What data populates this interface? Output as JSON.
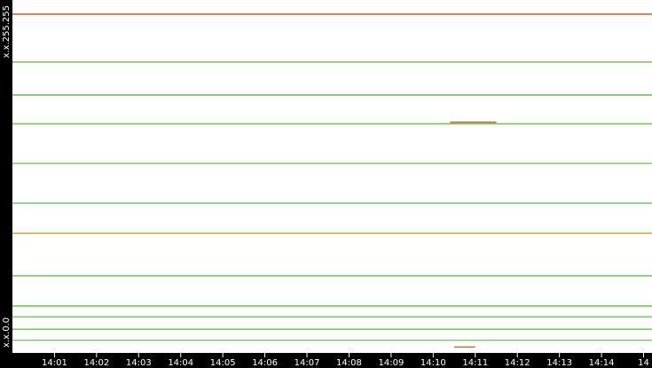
{
  "chart_data": {
    "type": "raster",
    "xlim": [
      0,
      15.2
    ],
    "xticks": [
      {
        "value": 1,
        "label": "14:01"
      },
      {
        "value": 2,
        "label": "14:02"
      },
      {
        "value": 3,
        "label": "14:03"
      },
      {
        "value": 4,
        "label": "14:04"
      },
      {
        "value": 5,
        "label": "14:05"
      },
      {
        "value": 6,
        "label": "14:06"
      },
      {
        "value": 7,
        "label": "14:07"
      },
      {
        "value": 8,
        "label": "14:08"
      },
      {
        "value": 9,
        "label": "14:09"
      },
      {
        "value": 10,
        "label": "14:10"
      },
      {
        "value": 11,
        "label": "14:11"
      },
      {
        "value": 12,
        "label": "14:12"
      },
      {
        "value": 13,
        "label": "14:13"
      },
      {
        "value": 14,
        "label": "14:14"
      },
      {
        "value": 15,
        "label": "14"
      }
    ],
    "ylim": [
      0,
      255
    ],
    "yticks": [
      {
        "value": 255,
        "label": "x.x.255.255"
      },
      {
        "value": 0,
        "label": "x.x.0.0"
      }
    ],
    "lines": [
      {
        "y": 246,
        "x": [
          0,
          15.2
        ],
        "color": "#e0642a"
      },
      {
        "y": 211,
        "x": [
          0,
          15.2
        ],
        "color": "#7cc46a"
      },
      {
        "y": 187,
        "x": [
          0,
          15.2
        ],
        "color": "#6cbf5c"
      },
      {
        "y": 166,
        "x": [
          0,
          15.2
        ],
        "color": "#7cc46a"
      },
      {
        "y": 167,
        "x": [
          10.4,
          11.5
        ],
        "color": "#e0642a"
      },
      {
        "y": 137,
        "x": [
          0,
          15.2
        ],
        "color": "#8acb78"
      },
      {
        "y": 108,
        "x": [
          0,
          15.2
        ],
        "color": "#7cc46a"
      },
      {
        "y": 86,
        "x": [
          0,
          15.2
        ],
        "color": "#e0a030"
      },
      {
        "y": 55,
        "x": [
          0,
          15.2
        ],
        "color": "#7cc46a"
      },
      {
        "y": 33,
        "x": [
          0,
          15.2
        ],
        "color": "#6cbf5c"
      },
      {
        "y": 25,
        "x": [
          0,
          15.2
        ],
        "color": "#7cc46a"
      },
      {
        "y": 16,
        "x": [
          0,
          15.2
        ],
        "color": "#7cc46a"
      },
      {
        "y": 8,
        "x": [
          0,
          15.2
        ],
        "color": "#8acb78"
      },
      {
        "y": 3,
        "x": [
          10.5,
          11
        ],
        "color": "#e0642a"
      }
    ]
  }
}
